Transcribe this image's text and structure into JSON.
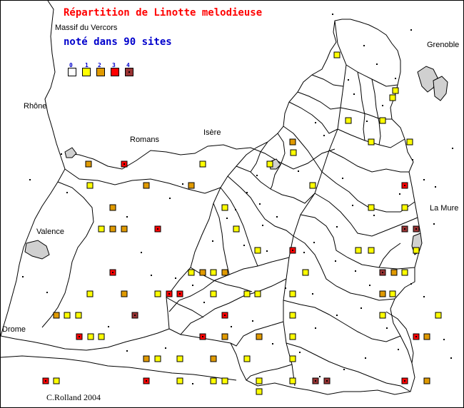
{
  "title": "Répartition de Linotte melodieuse",
  "subtitle": "Massif du Vercors",
  "count_text": "noté dans 90 sites",
  "credit": "C.Rolland 2004",
  "colors": {
    "title": "#ff0000",
    "count": "#0000cc",
    "legend_numbers": "#0000cc",
    "border": "#000000",
    "class_0": "#ffffff",
    "class_1": "#ffff00",
    "class_2": "#e09a00",
    "class_3": "#ff0000",
    "class_4": "#993333"
  },
  "legend": [
    {
      "label": "0",
      "class": 0
    },
    {
      "label": "1",
      "class": 1
    },
    {
      "label": "2",
      "class": 2
    },
    {
      "label": "3",
      "class": 3
    },
    {
      "label": "4",
      "class": 4
    }
  ],
  "places": [
    "Grenoble",
    "Rhône",
    "Romans",
    "Isère",
    "La Mure",
    "Valence",
    "Drome"
  ],
  "sites": [
    [
      471,
      76,
      1
    ],
    [
      553,
      126,
      1
    ],
    [
      549,
      136,
      1
    ],
    [
      487,
      168,
      1
    ],
    [
      535,
      168,
      1
    ],
    [
      409,
      198,
      2
    ],
    [
      410,
      213,
      1
    ],
    [
      519,
      198,
      1
    ],
    [
      573,
      198,
      1
    ],
    [
      123,
      229,
      2
    ],
    [
      173,
      229,
      3
    ],
    [
      283,
      229,
      1
    ],
    [
      377,
      229,
      1
    ],
    [
      125,
      259,
      1
    ],
    [
      204,
      259,
      2
    ],
    [
      267,
      259,
      2
    ],
    [
      437,
      259,
      1
    ],
    [
      566,
      259,
      3
    ],
    [
      157,
      290,
      2
    ],
    [
      314,
      290,
      1
    ],
    [
      519,
      290,
      1
    ],
    [
      566,
      290,
      1
    ],
    [
      141,
      320,
      1
    ],
    [
      157,
      320,
      2
    ],
    [
      173,
      320,
      2
    ],
    [
      220,
      320,
      3
    ],
    [
      330,
      320,
      1
    ],
    [
      566,
      320,
      4
    ],
    [
      582,
      320,
      4
    ],
    [
      360,
      350,
      1
    ],
    [
      409,
      350,
      3
    ],
    [
      501,
      350,
      1
    ],
    [
      519,
      350,
      1
    ],
    [
      582,
      350,
      1
    ],
    [
      157,
      381,
      3
    ],
    [
      267,
      381,
      1
    ],
    [
      283,
      381,
      2
    ],
    [
      298,
      381,
      1
    ],
    [
      314,
      381,
      2
    ],
    [
      427,
      381,
      1
    ],
    [
      535,
      381,
      4
    ],
    [
      551,
      381,
      2
    ],
    [
      566,
      381,
      1
    ],
    [
      125,
      411,
      1
    ],
    [
      173,
      411,
      2
    ],
    [
      220,
      411,
      1
    ],
    [
      236,
      411,
      3
    ],
    [
      251,
      411,
      3
    ],
    [
      298,
      411,
      1
    ],
    [
      345,
      411,
      1
    ],
    [
      360,
      411,
      1
    ],
    [
      409,
      411,
      1
    ],
    [
      535,
      411,
      2
    ],
    [
      549,
      411,
      1
    ],
    [
      78,
      441,
      2
    ],
    [
      93,
      441,
      1
    ],
    [
      109,
      441,
      1
    ],
    [
      188,
      441,
      4
    ],
    [
      314,
      441,
      3
    ],
    [
      409,
      441,
      1
    ],
    [
      613,
      441,
      1
    ],
    [
      110,
      471,
      3
    ],
    [
      126,
      471,
      1
    ],
    [
      141,
      471,
      1
    ],
    [
      283,
      471,
      3
    ],
    [
      314,
      471,
      2
    ],
    [
      362,
      471,
      2
    ],
    [
      409,
      471,
      1
    ],
    [
      582,
      471,
      3
    ],
    [
      597,
      471,
      2
    ],
    [
      204,
      502,
      2
    ],
    [
      251,
      502,
      1
    ],
    [
      298,
      502,
      2
    ],
    [
      345,
      502,
      1
    ],
    [
      409,
      502,
      1
    ],
    [
      220,
      502,
      1
    ],
    [
      63,
      533,
      3
    ],
    [
      78,
      533,
      1
    ],
    [
      204,
      533,
      3
    ],
    [
      251,
      533,
      1
    ],
    [
      298,
      533,
      1
    ],
    [
      362,
      533,
      1
    ],
    [
      409,
      533,
      1
    ],
    [
      441,
      533,
      4
    ],
    [
      457,
      533,
      4
    ],
    [
      566,
      533,
      3
    ],
    [
      597,
      533,
      2
    ],
    [
      362,
      548,
      1
    ],
    [
      314,
      533,
      1
    ],
    [
      535,
      441,
      1
    ]
  ]
}
